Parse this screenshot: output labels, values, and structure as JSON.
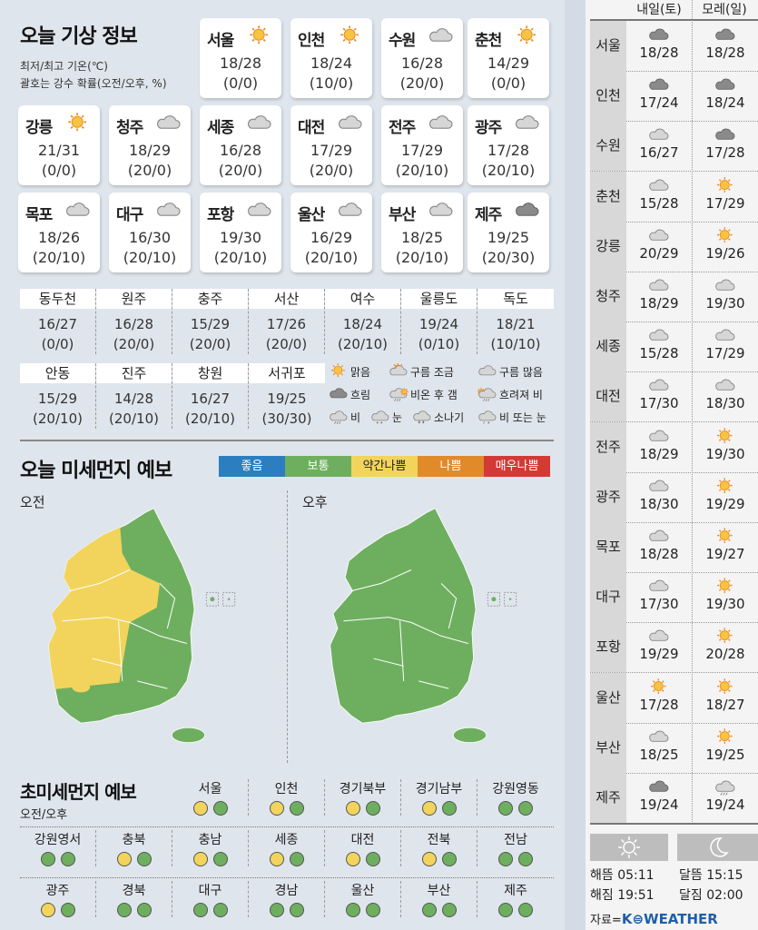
{
  "title": "오늘 기상 정보",
  "notes": [
    "최저/최고 기온(℃)",
    "괄호는 강수 확률(오전/오후, %)"
  ],
  "colors": {
    "sun": "#f6c342",
    "sun_ray": "#f08a1c",
    "cloud_light": "#d6d6d6",
    "cloud_dark": "#8a8a8a",
    "good": "#2b7fc1",
    "normal": "#6eaf5f",
    "slightly_bad": "#f2d45c",
    "bad": "#e08a2a",
    "very_bad": "#d23a36"
  },
  "today": [
    {
      "city": "서울",
      "icon": "sunny",
      "temp": "18/28",
      "rain": "(0/0)"
    },
    {
      "city": "인천",
      "icon": "sunny",
      "temp": "18/24",
      "rain": "(10/0)"
    },
    {
      "city": "수원",
      "icon": "cloudy",
      "temp": "16/28",
      "rain": "(20/0)"
    },
    {
      "city": "춘천",
      "icon": "sunny",
      "temp": "14/29",
      "rain": "(0/0)"
    },
    {
      "city": "강릉",
      "icon": "sunny",
      "temp": "21/31",
      "rain": "(0/0)"
    },
    {
      "city": "청주",
      "icon": "cloudy",
      "temp": "18/29",
      "rain": "(20/0)"
    },
    {
      "city": "세종",
      "icon": "cloudy",
      "temp": "16/28",
      "rain": "(20/0)"
    },
    {
      "city": "대전",
      "icon": "cloudy",
      "temp": "17/29",
      "rain": "(20/0)"
    },
    {
      "city": "전주",
      "icon": "cloudy",
      "temp": "17/29",
      "rain": "(20/10)"
    },
    {
      "city": "광주",
      "icon": "cloudy",
      "temp": "17/28",
      "rain": "(20/10)"
    },
    {
      "city": "목포",
      "icon": "cloudy",
      "temp": "18/26",
      "rain": "(20/10)"
    },
    {
      "city": "대구",
      "icon": "cloudy",
      "temp": "16/30",
      "rain": "(20/10)"
    },
    {
      "city": "포항",
      "icon": "cloudy",
      "temp": "19/30",
      "rain": "(20/10)"
    },
    {
      "city": "울산",
      "icon": "cloudy",
      "temp": "16/29",
      "rain": "(20/10)"
    },
    {
      "city": "부산",
      "icon": "cloudy",
      "temp": "18/25",
      "rain": "(20/10)"
    },
    {
      "city": "제주",
      "icon": "overcast",
      "temp": "19/25",
      "rain": "(20/30)"
    }
  ],
  "other_cities": [
    {
      "city": "동두천",
      "temp": "16/27",
      "rain": "(0/0)"
    },
    {
      "city": "원주",
      "temp": "16/28",
      "rain": "(20/0)"
    },
    {
      "city": "충주",
      "temp": "15/29",
      "rain": "(20/0)"
    },
    {
      "city": "서산",
      "temp": "17/26",
      "rain": "(20/0)"
    },
    {
      "city": "여수",
      "temp": "18/24",
      "rain": "(20/10)"
    },
    {
      "city": "울릉도",
      "temp": "19/24",
      "rain": "(0/10)"
    },
    {
      "city": "독도",
      "temp": "18/21",
      "rain": "(10/10)"
    },
    {
      "city": "안동",
      "temp": "15/29",
      "rain": "(20/10)"
    },
    {
      "city": "진주",
      "temp": "14/28",
      "rain": "(20/10)"
    },
    {
      "city": "창원",
      "temp": "16/27",
      "rain": "(20/10)"
    },
    {
      "city": "서귀포",
      "temp": "19/25",
      "rain": "(30/30)"
    }
  ],
  "legend": [
    {
      "icon": "sunny",
      "label": "맑음"
    },
    {
      "icon": "partly-cloudy",
      "label": "구름 조금"
    },
    {
      "icon": "cloudy",
      "label": "구름 많음"
    },
    {
      "icon": "overcast",
      "label": "흐림"
    },
    {
      "icon": "rain-then-clear",
      "label": "비온 후 갬"
    },
    {
      "icon": "clouding-rain",
      "label": "흐려져 비"
    },
    {
      "icon": "rain",
      "label": "비"
    },
    {
      "icon": "snow",
      "label": "눈"
    },
    {
      "icon": "shower",
      "label": "소나기"
    },
    {
      "icon": "rain-or-snow",
      "label": "비 또는 눈"
    }
  ],
  "dust": {
    "title": "오늘 미세먼지 예보",
    "scale": [
      "좋음",
      "보통",
      "약간나쁨",
      "나쁨",
      "매우나쁨"
    ],
    "am_label": "오전",
    "pm_label": "오후",
    "am_map": {
      "west_region": "slightly_bad",
      "rest": "normal"
    },
    "pm_map": {
      "all": "normal"
    }
  },
  "ultrafine": {
    "title": "초미세먼지 예보",
    "subtitle": "오전/오후",
    "regions": [
      {
        "name": "서울",
        "am": "slightly_bad",
        "pm": "normal"
      },
      {
        "name": "인천",
        "am": "slightly_bad",
        "pm": "normal"
      },
      {
        "name": "경기북부",
        "am": "slightly_bad",
        "pm": "normal"
      },
      {
        "name": "경기남부",
        "am": "slightly_bad",
        "pm": "normal"
      },
      {
        "name": "강원영동",
        "am": "normal",
        "pm": "normal"
      },
      {
        "name": "강원영서",
        "am": "normal",
        "pm": "normal"
      },
      {
        "name": "충북",
        "am": "slightly_bad",
        "pm": "normal"
      },
      {
        "name": "충남",
        "am": "slightly_bad",
        "pm": "normal"
      },
      {
        "name": "세종",
        "am": "slightly_bad",
        "pm": "normal"
      },
      {
        "name": "대전",
        "am": "slightly_bad",
        "pm": "normal"
      },
      {
        "name": "전북",
        "am": "slightly_bad",
        "pm": "normal"
      },
      {
        "name": "전남",
        "am": "normal",
        "pm": "normal"
      },
      {
        "name": "광주",
        "am": "slightly_bad",
        "pm": "normal"
      },
      {
        "name": "경북",
        "am": "normal",
        "pm": "normal"
      },
      {
        "name": "대구",
        "am": "normal",
        "pm": "normal"
      },
      {
        "name": "경남",
        "am": "normal",
        "pm": "normal"
      },
      {
        "name": "울산",
        "am": "normal",
        "pm": "normal"
      },
      {
        "name": "부산",
        "am": "normal",
        "pm": "normal"
      },
      {
        "name": "제주",
        "am": "normal",
        "pm": "normal"
      }
    ]
  },
  "forecast": {
    "headers": [
      "내일(토)",
      "모레(일)"
    ],
    "rows": [
      {
        "city": "서울",
        "d1": {
          "icon": "overcast",
          "temp": "18/28"
        },
        "d2": {
          "icon": "overcast",
          "temp": "18/28"
        }
      },
      {
        "city": "인천",
        "d1": {
          "icon": "overcast",
          "temp": "17/24"
        },
        "d2": {
          "icon": "overcast",
          "temp": "18/24"
        }
      },
      {
        "city": "수원",
        "d1": {
          "icon": "cloudy",
          "temp": "16/27"
        },
        "d2": {
          "icon": "overcast",
          "temp": "17/28"
        }
      },
      {
        "city": "춘천",
        "d1": {
          "icon": "cloudy",
          "temp": "15/28"
        },
        "d2": {
          "icon": "sunny",
          "temp": "17/29"
        }
      },
      {
        "city": "강릉",
        "d1": {
          "icon": "cloudy",
          "temp": "20/29"
        },
        "d2": {
          "icon": "sunny",
          "temp": "19/26"
        }
      },
      {
        "city": "청주",
        "d1": {
          "icon": "cloudy",
          "temp": "18/29"
        },
        "d2": {
          "icon": "cloudy",
          "temp": "19/30"
        }
      },
      {
        "city": "세종",
        "d1": {
          "icon": "cloudy",
          "temp": "15/28"
        },
        "d2": {
          "icon": "cloudy",
          "temp": "17/29"
        }
      },
      {
        "city": "대전",
        "d1": {
          "icon": "cloudy",
          "temp": "17/30"
        },
        "d2": {
          "icon": "cloudy",
          "temp": "18/30"
        }
      },
      {
        "city": "전주",
        "d1": {
          "icon": "cloudy",
          "temp": "18/29"
        },
        "d2": {
          "icon": "sunny",
          "temp": "19/30"
        }
      },
      {
        "city": "광주",
        "d1": {
          "icon": "cloudy",
          "temp": "18/30"
        },
        "d2": {
          "icon": "sunny",
          "temp": "19/29"
        }
      },
      {
        "city": "목포",
        "d1": {
          "icon": "cloudy",
          "temp": "18/28"
        },
        "d2": {
          "icon": "sunny",
          "temp": "19/27"
        }
      },
      {
        "city": "대구",
        "d1": {
          "icon": "cloudy",
          "temp": "17/30"
        },
        "d2": {
          "icon": "sunny",
          "temp": "19/30"
        }
      },
      {
        "city": "포항",
        "d1": {
          "icon": "cloudy",
          "temp": "19/29"
        },
        "d2": {
          "icon": "sunny",
          "temp": "20/28"
        }
      },
      {
        "city": "울산",
        "d1": {
          "icon": "sunny",
          "temp": "17/28"
        },
        "d2": {
          "icon": "sunny",
          "temp": "18/27"
        }
      },
      {
        "city": "부산",
        "d1": {
          "icon": "cloudy",
          "temp": "18/25"
        },
        "d2": {
          "icon": "sunny",
          "temp": "19/25"
        }
      },
      {
        "city": "제주",
        "d1": {
          "icon": "overcast",
          "temp": "19/24"
        },
        "d2": {
          "icon": "rain",
          "temp": "19/24"
        }
      }
    ]
  },
  "sun_moon": {
    "sunrise": "해뜸 05:11",
    "sunset": "해짐 19:51",
    "moonrise": "달뜸 15:15",
    "moonset": "달짐 02:00"
  },
  "source": {
    "prefix": "자료=",
    "brand": "K⊜WEATHER"
  }
}
